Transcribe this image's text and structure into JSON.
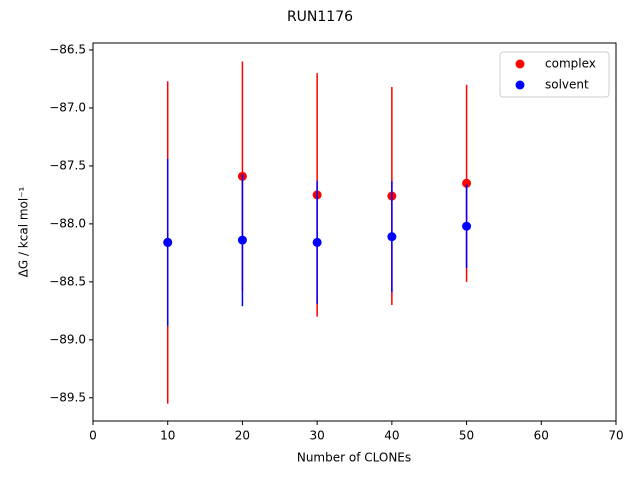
{
  "chart_data": {
    "type": "errorbar-scatter",
    "title": "RUN1176",
    "x_label": "Number of CLONEs",
    "y_label": "ΔG / kcal mol⁻¹",
    "x": [
      10,
      20,
      30,
      40,
      50
    ],
    "series": [
      {
        "name": "complex",
        "color": "#ff0000",
        "values": [
          -88.16,
          -87.59,
          -87.75,
          -87.76,
          -87.65
        ],
        "errors": [
          1.39,
          0.99,
          1.05,
          0.94,
          0.85
        ]
      },
      {
        "name": "solvent",
        "color": "#0000ff",
        "values": [
          -88.16,
          -88.14,
          -88.16,
          -88.11,
          -88.02
        ],
        "errors": [
          0.72,
          0.57,
          0.53,
          0.48,
          0.36
        ]
      }
    ],
    "xlim": [
      0,
      70
    ],
    "xticks": [
      0,
      10,
      20,
      30,
      40,
      50,
      60,
      70
    ],
    "ylim": [
      -89.7,
      -86.44
    ],
    "yticks": [
      {
        "value": -86.5,
        "label": "−86.5"
      },
      {
        "value": -87.0,
        "label": "−87.0"
      },
      {
        "value": -87.5,
        "label": "−87.5"
      },
      {
        "value": -88.0,
        "label": "−88.0"
      },
      {
        "value": -88.5,
        "label": "−88.5"
      },
      {
        "value": -89.0,
        "label": "−89.0"
      },
      {
        "value": -89.5,
        "label": "−89.5"
      }
    ],
    "legend": "upper right"
  }
}
